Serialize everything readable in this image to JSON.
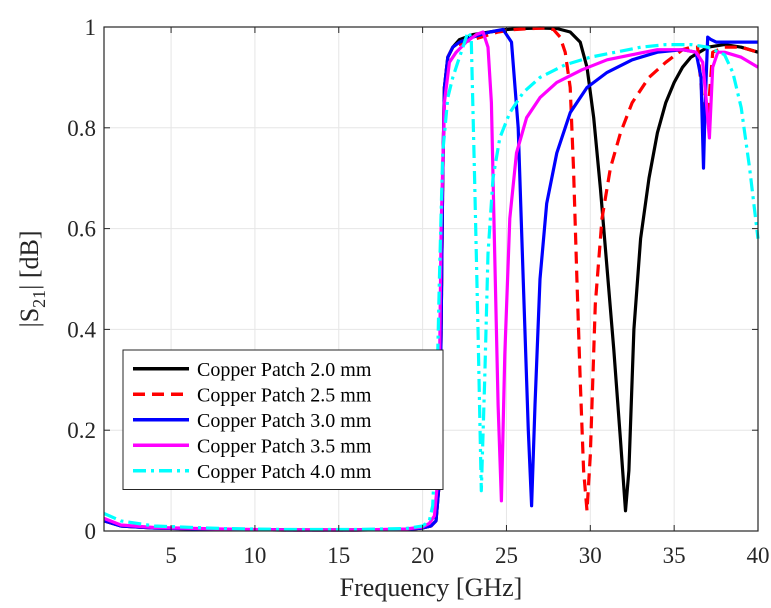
{
  "chart_data": {
    "type": "line",
    "xlabel": "Frequency [GHz]",
    "ylabel_pre": "|S",
    "ylabel_sub": "21",
    "ylabel_post": "| [dB]",
    "xlim": [
      1,
      40
    ],
    "ylim": [
      0,
      1
    ],
    "xticks": [
      5,
      10,
      15,
      20,
      25,
      30,
      35,
      40
    ],
    "xtick_labels": [
      "5",
      "10",
      "15",
      "20",
      "25",
      "30",
      "35",
      "40"
    ],
    "yticks": [
      0,
      0.2,
      0.4,
      0.6,
      0.8,
      1
    ],
    "ytick_labels": [
      "0",
      "0.2",
      "0.4",
      "0.6",
      "0.8",
      "1"
    ],
    "grid": true,
    "legend_position": "bottom-left",
    "series": [
      {
        "name": "Copper Patch 2.0 mm",
        "color": "#000000",
        "dash": "solid",
        "x": [
          1,
          2,
          4,
          8,
          12,
          16,
          19,
          20,
          20.5,
          20.8,
          21.0,
          21.1,
          21.2,
          21.3,
          21.5,
          21.8,
          22.2,
          23.0,
          24.0,
          25.0,
          26.0,
          27.0,
          28.0,
          28.8,
          29.4,
          29.8,
          30.2,
          30.6,
          31.0,
          31.4,
          31.8,
          32.1,
          32.3,
          32.6,
          33.0,
          33.5,
          34.0,
          34.5,
          35.0,
          35.5,
          36.0,
          36.5,
          37.0,
          38.0,
          39.0,
          40.0
        ],
        "y": [
          0.02,
          0.01,
          0.006,
          0.003,
          0.002,
          0.002,
          0.003,
          0.006,
          0.01,
          0.02,
          0.1,
          0.4,
          0.7,
          0.88,
          0.94,
          0.96,
          0.975,
          0.985,
          0.99,
          0.995,
          0.997,
          0.998,
          0.997,
          0.99,
          0.97,
          0.92,
          0.82,
          0.68,
          0.52,
          0.36,
          0.18,
          0.04,
          0.12,
          0.4,
          0.58,
          0.7,
          0.79,
          0.85,
          0.89,
          0.92,
          0.94,
          0.95,
          0.96,
          0.965,
          0.96,
          0.95
        ]
      },
      {
        "name": "Copper Patch 2.5 mm",
        "color": "#ff0000",
        "dash": "dashed",
        "x": [
          1,
          2,
          4,
          8,
          12,
          16,
          19,
          20,
          20.5,
          20.8,
          21.0,
          21.1,
          21.2,
          21.3,
          21.5,
          21.8,
          22.5,
          23.5,
          24.5,
          25.5,
          26.5,
          27.3,
          27.8,
          28.2,
          28.5,
          28.8,
          29.0,
          29.2,
          29.4,
          29.6,
          29.8,
          30.0,
          30.3,
          30.7,
          31.2,
          31.8,
          32.5,
          33.5,
          34.5,
          35.5,
          36.0,
          36.4,
          36.7,
          37.0,
          37.3,
          38.0,
          39.0,
          40.0
        ],
        "y": [
          0.02,
          0.01,
          0.006,
          0.003,
          0.002,
          0.002,
          0.003,
          0.006,
          0.01,
          0.02,
          0.1,
          0.4,
          0.7,
          0.88,
          0.94,
          0.96,
          0.97,
          0.98,
          0.99,
          0.995,
          0.997,
          0.998,
          0.995,
          0.98,
          0.95,
          0.88,
          0.72,
          0.5,
          0.3,
          0.12,
          0.04,
          0.15,
          0.45,
          0.62,
          0.72,
          0.79,
          0.85,
          0.9,
          0.93,
          0.955,
          0.96,
          0.96,
          0.85,
          0.82,
          0.95,
          0.96,
          0.96,
          0.95
        ]
      },
      {
        "name": "Copper Patch 3.0 mm",
        "color": "#0000ff",
        "dash": "solid",
        "x": [
          1,
          2,
          4,
          8,
          12,
          16,
          19,
          20,
          20.5,
          20.8,
          21.0,
          21.1,
          21.2,
          21.3,
          21.5,
          21.8,
          22.2,
          23.0,
          24.0,
          24.8,
          25.3,
          25.7,
          26.0,
          26.3,
          26.5,
          26.7,
          27.0,
          27.4,
          28.0,
          28.8,
          29.8,
          31.0,
          32.5,
          34.0,
          35.5,
          36.3,
          36.6,
          36.75,
          36.85,
          37.0,
          37.2,
          37.5,
          38.0,
          39.0,
          40.0
        ],
        "y": [
          0.02,
          0.01,
          0.006,
          0.003,
          0.002,
          0.002,
          0.003,
          0.006,
          0.01,
          0.02,
          0.1,
          0.4,
          0.7,
          0.88,
          0.94,
          0.96,
          0.97,
          0.98,
          0.99,
          0.995,
          0.97,
          0.8,
          0.5,
          0.2,
          0.05,
          0.25,
          0.5,
          0.65,
          0.75,
          0.83,
          0.88,
          0.91,
          0.935,
          0.95,
          0.955,
          0.95,
          0.9,
          0.72,
          0.85,
          0.98,
          0.975,
          0.97,
          0.97,
          0.97,
          0.97
        ]
      },
      {
        "name": "Copper Patch 3.5 mm",
        "color": "#ff00ff",
        "dash": "solid",
        "x": [
          1,
          2,
          4,
          8,
          12,
          16,
          19,
          20,
          20.4,
          20.7,
          20.9,
          21.0,
          21.1,
          21.3,
          21.6,
          22.0,
          22.6,
          23.2,
          23.6,
          23.9,
          24.1,
          24.3,
          24.5,
          24.7,
          24.9,
          25.2,
          25.6,
          26.2,
          27.0,
          28.0,
          29.5,
          31.0,
          32.5,
          34.0,
          35.5,
          36.3,
          36.7,
          36.9,
          37.1,
          37.3,
          37.6,
          38.0,
          39.0,
          40.0
        ],
        "y": [
          0.025,
          0.012,
          0.007,
          0.004,
          0.002,
          0.002,
          0.004,
          0.008,
          0.015,
          0.03,
          0.1,
          0.3,
          0.6,
          0.85,
          0.93,
          0.95,
          0.97,
          0.985,
          0.99,
          0.96,
          0.85,
          0.55,
          0.25,
          0.06,
          0.35,
          0.62,
          0.75,
          0.82,
          0.86,
          0.89,
          0.915,
          0.935,
          0.945,
          0.955,
          0.955,
          0.95,
          0.93,
          0.86,
          0.78,
          0.92,
          0.95,
          0.95,
          0.94,
          0.92
        ]
      },
      {
        "name": "Copper Patch 4.0 mm",
        "color": "#00ffff",
        "dash": "dashdot",
        "x": [
          1,
          2,
          4,
          8,
          12,
          16,
          19,
          20,
          20.4,
          20.6,
          20.8,
          21.0,
          21.2,
          21.5,
          21.8,
          22.1,
          22.4,
          22.7,
          22.9,
          23.1,
          23.3,
          23.5,
          23.7,
          23.9,
          24.2,
          24.6,
          25.2,
          26.0,
          27.0,
          28.5,
          30.0,
          31.5,
          33.0,
          34.5,
          36.0,
          37.0,
          38.0,
          38.5,
          39.0,
          39.5,
          40.0
        ],
        "y": [
          0.035,
          0.02,
          0.01,
          0.005,
          0.003,
          0.003,
          0.005,
          0.01,
          0.02,
          0.05,
          0.2,
          0.5,
          0.75,
          0.86,
          0.9,
          0.93,
          0.96,
          0.99,
          0.98,
          0.7,
          0.4,
          0.08,
          0.3,
          0.55,
          0.7,
          0.78,
          0.83,
          0.87,
          0.9,
          0.925,
          0.94,
          0.95,
          0.96,
          0.965,
          0.965,
          0.96,
          0.945,
          0.91,
          0.84,
          0.72,
          0.58
        ]
      }
    ]
  }
}
